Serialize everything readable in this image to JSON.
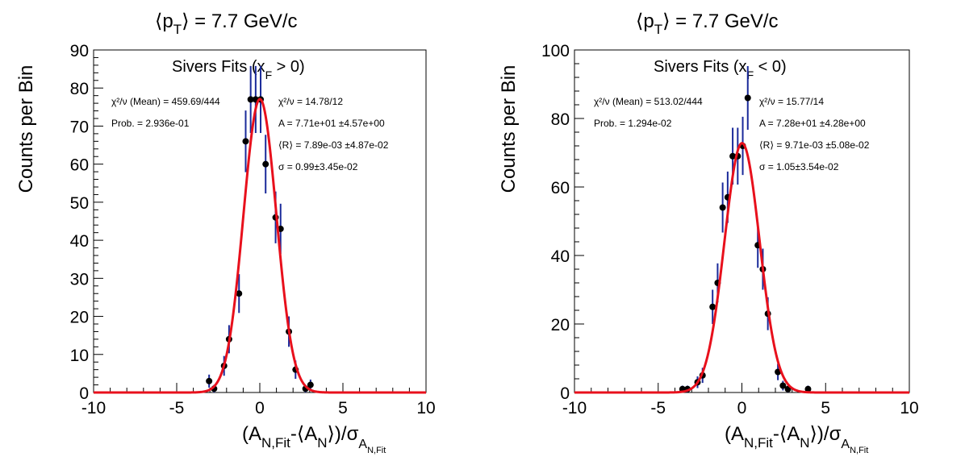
{
  "colors": {
    "fit": "#e8101c",
    "error_bar": "#1a2a9a",
    "marker": "#000000",
    "frame": "#000000",
    "background": "#ffffff"
  },
  "chart_data": [
    {
      "type": "scatter",
      "header": "⟨p_T⟩ = 7.7 GeV/c",
      "title": "Sivers Fits (x_F > 0)",
      "xlabel": "(A_N,Fit-⟨A_N⟩)/σ_A_N,Fit",
      "ylabel": "Counts per Bin",
      "xlim": [
        -10,
        10
      ],
      "ylim": [
        0,
        90
      ],
      "x_ticks": [
        -10,
        -5,
        0,
        5,
        10
      ],
      "y_ticks": [
        0,
        10,
        20,
        30,
        40,
        50,
        60,
        70,
        80,
        90
      ],
      "grid": false,
      "bin_width": 0.3,
      "series": [
        {
          "x": [
            -3.05,
            -2.75,
            -2.15,
            -1.85,
            -1.25,
            -0.85,
            -0.55,
            -0.25,
            0.05,
            0.35,
            0.95,
            1.25,
            1.75,
            2.15,
            2.75,
            3.05
          ],
          "y": [
            3,
            1,
            7,
            14,
            26,
            66,
            77,
            77,
            77,
            60,
            46,
            43,
            16,
            6,
            1,
            2
          ],
          "yerr": [
            1.7,
            1.0,
            2.6,
            3.7,
            5.1,
            8.1,
            8.8,
            8.8,
            8.8,
            7.7,
            6.8,
            6.6,
            4.0,
            2.4,
            1.0,
            1.4
          ]
        }
      ],
      "fit": {
        "A": 77.1,
        "mean": 0.00789,
        "sigma": 0.99
      },
      "stats_left": [
        "χ²/ν (Mean) = 459.69/444",
        "Prob. = 2.936e-01"
      ],
      "stats_right": [
        "χ²/ν = 14.78/12",
        "A = 7.71e+01 ±4.57e+00",
        "⟨R⟩ = 7.89e-03 ±4.87e-02",
        "σ = 0.99±3.45e-02"
      ]
    },
    {
      "type": "scatter",
      "header": "⟨p_T⟩ = 7.7 GeV/c",
      "title": "Sivers Fits (x_F < 0)",
      "xlabel": "(A_N,Fit-⟨A_N⟩)/σ_A_N,Fit",
      "ylabel": "Counts per Bin",
      "xlim": [
        -10,
        10
      ],
      "ylim": [
        0,
        100
      ],
      "x_ticks": [
        -10,
        -5,
        0,
        5,
        10
      ],
      "y_ticks": [
        0,
        20,
        40,
        60,
        80,
        100
      ],
      "grid": false,
      "bin_width": 0.3,
      "series": [
        {
          "x": [
            -3.55,
            -3.25,
            -2.65,
            -2.35,
            -1.75,
            -1.45,
            -1.15,
            -0.85,
            -0.55,
            -0.25,
            0.05,
            0.35,
            0.95,
            1.25,
            1.55,
            2.15,
            2.45,
            2.75,
            3.95
          ],
          "y": [
            1,
            1,
            3,
            5,
            25,
            32,
            54,
            57,
            69,
            69,
            72,
            86,
            43,
            36,
            23,
            6,
            2,
            1,
            1
          ],
          "yerr": [
            1.0,
            1.0,
            1.7,
            2.2,
            5.0,
            5.7,
            7.3,
            7.5,
            8.3,
            8.3,
            8.5,
            9.3,
            6.6,
            6.0,
            4.8,
            2.4,
            1.4,
            1.0,
            1.0
          ]
        }
      ],
      "fit": {
        "A": 72.8,
        "mean": 0.00971,
        "sigma": 1.05
      },
      "stats_left": [
        "χ²/ν (Mean) = 513.02/444",
        "Prob. = 1.294e-02"
      ],
      "stats_right": [
        "χ²/ν = 15.77/14",
        "A = 7.28e+01 ±4.28e+00",
        "⟨R⟩ = 9.71e-03 ±5.08e-02",
        "σ = 1.05±3.54e-02"
      ]
    }
  ]
}
